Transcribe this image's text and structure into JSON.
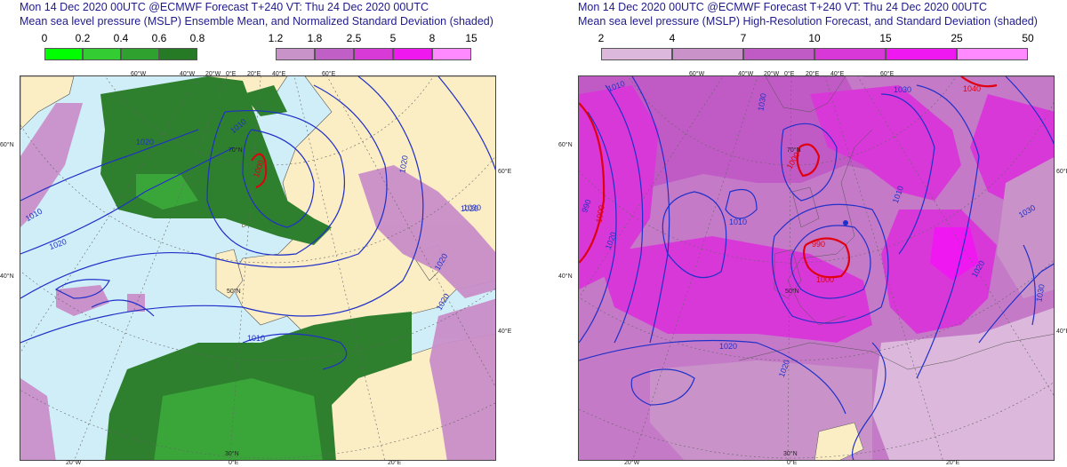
{
  "left": {
    "title1": "Mon 14 Dec 2020 00UTC @ECMWF Forecast T+240 VT: Thu 24 Dec 2020 00UTC",
    "title2": "Mean sea level pressure (MSLP) Ensemble Mean, and Normalized Standard Deviation (shaded)",
    "scale_green": [
      "0",
      "0.2",
      "0.4",
      "0.6",
      "0.8"
    ],
    "green_colors": [
      "#00ff00",
      "#33cc33",
      "#2fa12f",
      "#267a26"
    ],
    "scale_purple": [
      "1.2",
      "1.8",
      "2.5",
      "5",
      "8",
      "15"
    ],
    "purple_colors": [
      "#c893c8",
      "#c060c6",
      "#d83ad8",
      "#ef18ef",
      "#ff8aff"
    ],
    "isobars": [
      "1020",
      "1010",
      "1010",
      "1000",
      "1020",
      "1020",
      "1030",
      "1020",
      "1010",
      "1020",
      "1020"
    ],
    "top_lon": [
      "60°W",
      "40°W",
      "20°W",
      "0°E",
      "20°E",
      "40°E",
      "60°E"
    ],
    "left_lat": [
      "60°N",
      "40°N"
    ],
    "right_lat": [
      "60°E",
      "40°E"
    ],
    "bottom_lon": [
      "20°W",
      "0°E",
      "20°E"
    ],
    "inner": [
      "70°N",
      "50°N",
      "30°N"
    ]
  },
  "right": {
    "title1": "Mon 14 Dec 2020 00UTC @ECMWF Forecast T+240 VT: Thu 24 Dec 2020 00UTC",
    "title2": "Mean sea level pressure (MSLP) High-Resolution Forecast, and Standard Deviation (shaded)",
    "scale": [
      "2",
      "4",
      "7",
      "10",
      "15",
      "25",
      "50"
    ],
    "colors": [
      "#dcb8dc",
      "#c993c9",
      "#c05bc6",
      "#d838d8",
      "#f018f0",
      "#ff8aff"
    ],
    "isobars": [
      "1010",
      "1030",
      "1040",
      "1010",
      "1000",
      "990",
      "1000",
      "1020",
      "1010",
      "990",
      "1000",
      "1030",
      "1020",
      "1030",
      "1020",
      "1020",
      "1030"
    ],
    "top_lon": [
      "60°W",
      "40°W",
      "20°W",
      "0°E",
      "20°E",
      "40°E",
      "60°E"
    ],
    "left_lat": [
      "60°N",
      "40°N"
    ],
    "right_lat": [
      "60°E",
      "40°E"
    ],
    "bottom_lon": [
      "20°W",
      "0°E",
      "20°E"
    ],
    "inner": [
      "70°N",
      "50°N",
      "30°N"
    ]
  }
}
